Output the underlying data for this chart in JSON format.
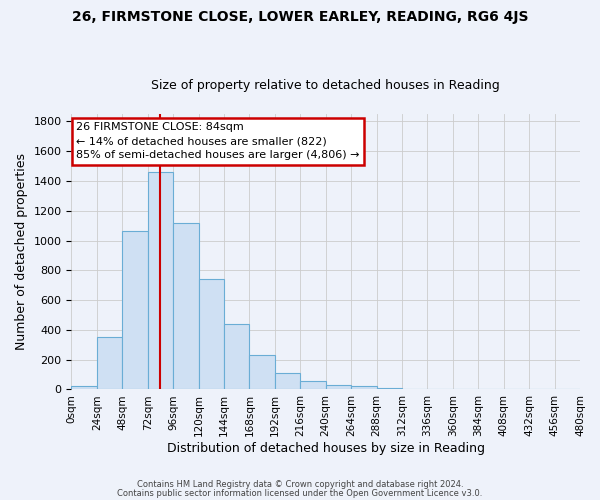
{
  "title": "26, FIRMSTONE CLOSE, LOWER EARLEY, READING, RG6 4JS",
  "subtitle": "Size of property relative to detached houses in Reading",
  "xlabel": "Distribution of detached houses by size in Reading",
  "ylabel": "Number of detached properties",
  "bar_values": [
    20,
    355,
    1065,
    1460,
    1115,
    745,
    440,
    230,
    110,
    55,
    30,
    20,
    10,
    5,
    2,
    2,
    0,
    0,
    0,
    0
  ],
  "bin_edges": [
    0,
    24,
    48,
    72,
    96,
    120,
    144,
    168,
    192,
    216,
    240,
    264,
    288,
    312,
    336,
    360,
    384,
    408,
    432,
    456,
    480
  ],
  "tick_labels": [
    "0sqm",
    "24sqm",
    "48sqm",
    "72sqm",
    "96sqm",
    "120sqm",
    "144sqm",
    "168sqm",
    "192sqm",
    "216sqm",
    "240sqm",
    "264sqm",
    "288sqm",
    "312sqm",
    "336sqm",
    "360sqm",
    "384sqm",
    "408sqm",
    "432sqm",
    "456sqm",
    "480sqm"
  ],
  "bar_color": "#cfe0f3",
  "bar_edge_color": "#6aadd5",
  "grid_color": "#cccccc",
  "vline_x": 84,
  "vline_color": "#cc0000",
  "annotation_title": "26 FIRMSTONE CLOSE: 84sqm",
  "annotation_line1": "← 14% of detached houses are smaller (822)",
  "annotation_line2": "85% of semi-detached houses are larger (4,806) →",
  "annotation_box_color": "#ffffff",
  "annotation_box_edge": "#cc0000",
  "footnote1": "Contains HM Land Registry data © Crown copyright and database right 2024.",
  "footnote2": "Contains public sector information licensed under the Open Government Licence v3.0.",
  "ylim": [
    0,
    1850
  ],
  "yticks": [
    0,
    200,
    400,
    600,
    800,
    1000,
    1200,
    1400,
    1600,
    1800
  ],
  "bg_color": "#eef2fa"
}
